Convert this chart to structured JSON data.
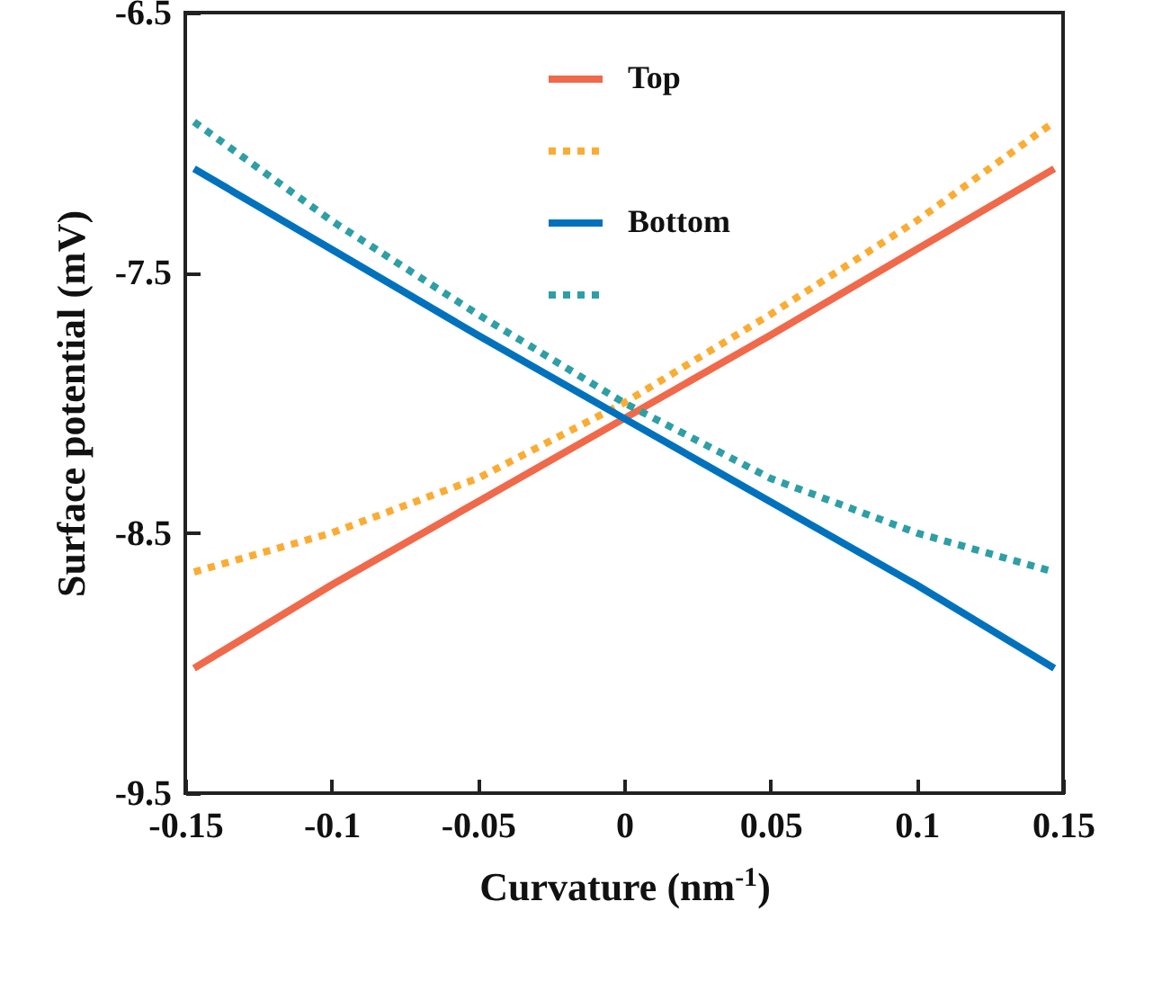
{
  "chart_data": {
    "type": "line",
    "xlabel": "Curvature (nm$^{-1}$)",
    "ylabel": "Surface potential (mV)",
    "x": [
      -0.147,
      -0.1,
      -0.05,
      0,
      0.05,
      0.1,
      0.147
    ],
    "series": [
      {
        "name": "Top",
        "color": "#f0694a",
        "line_style": "solid",
        "values": [
          -9.02,
          -8.7,
          -8.38,
          -8.06,
          -7.74,
          -7.41,
          -7.1
        ]
      },
      {
        "color": "#fbac33",
        "line_style": "dotted",
        "values": [
          -8.65,
          -8.5,
          -8.29,
          -8.0,
          -7.66,
          -7.3,
          -6.92
        ]
      },
      {
        "name": "Bottom",
        "color": "#0072bd",
        "line_style": "solid",
        "values": [
          -7.1,
          -7.41,
          -7.74,
          -8.06,
          -8.38,
          -8.7,
          -9.02
        ]
      },
      {
        "color": "#2e9fa5",
        "line_style": "dotted",
        "values": [
          -6.92,
          -7.3,
          -7.66,
          -8.0,
          -8.29,
          -8.5,
          -8.65
        ]
      }
    ],
    "xlim": [
      -0.15,
      0.15
    ],
    "xticks": [
      -0.15,
      -0.1,
      -0.05,
      0,
      0.05,
      0.1,
      0.15
    ],
    "ylim": [
      -9.5,
      -6.5
    ],
    "yticks": [
      -9.5,
      -8.5,
      -7.5,
      -6.5
    ],
    "grid": false,
    "legend": "top",
    "marker": "none"
  }
}
